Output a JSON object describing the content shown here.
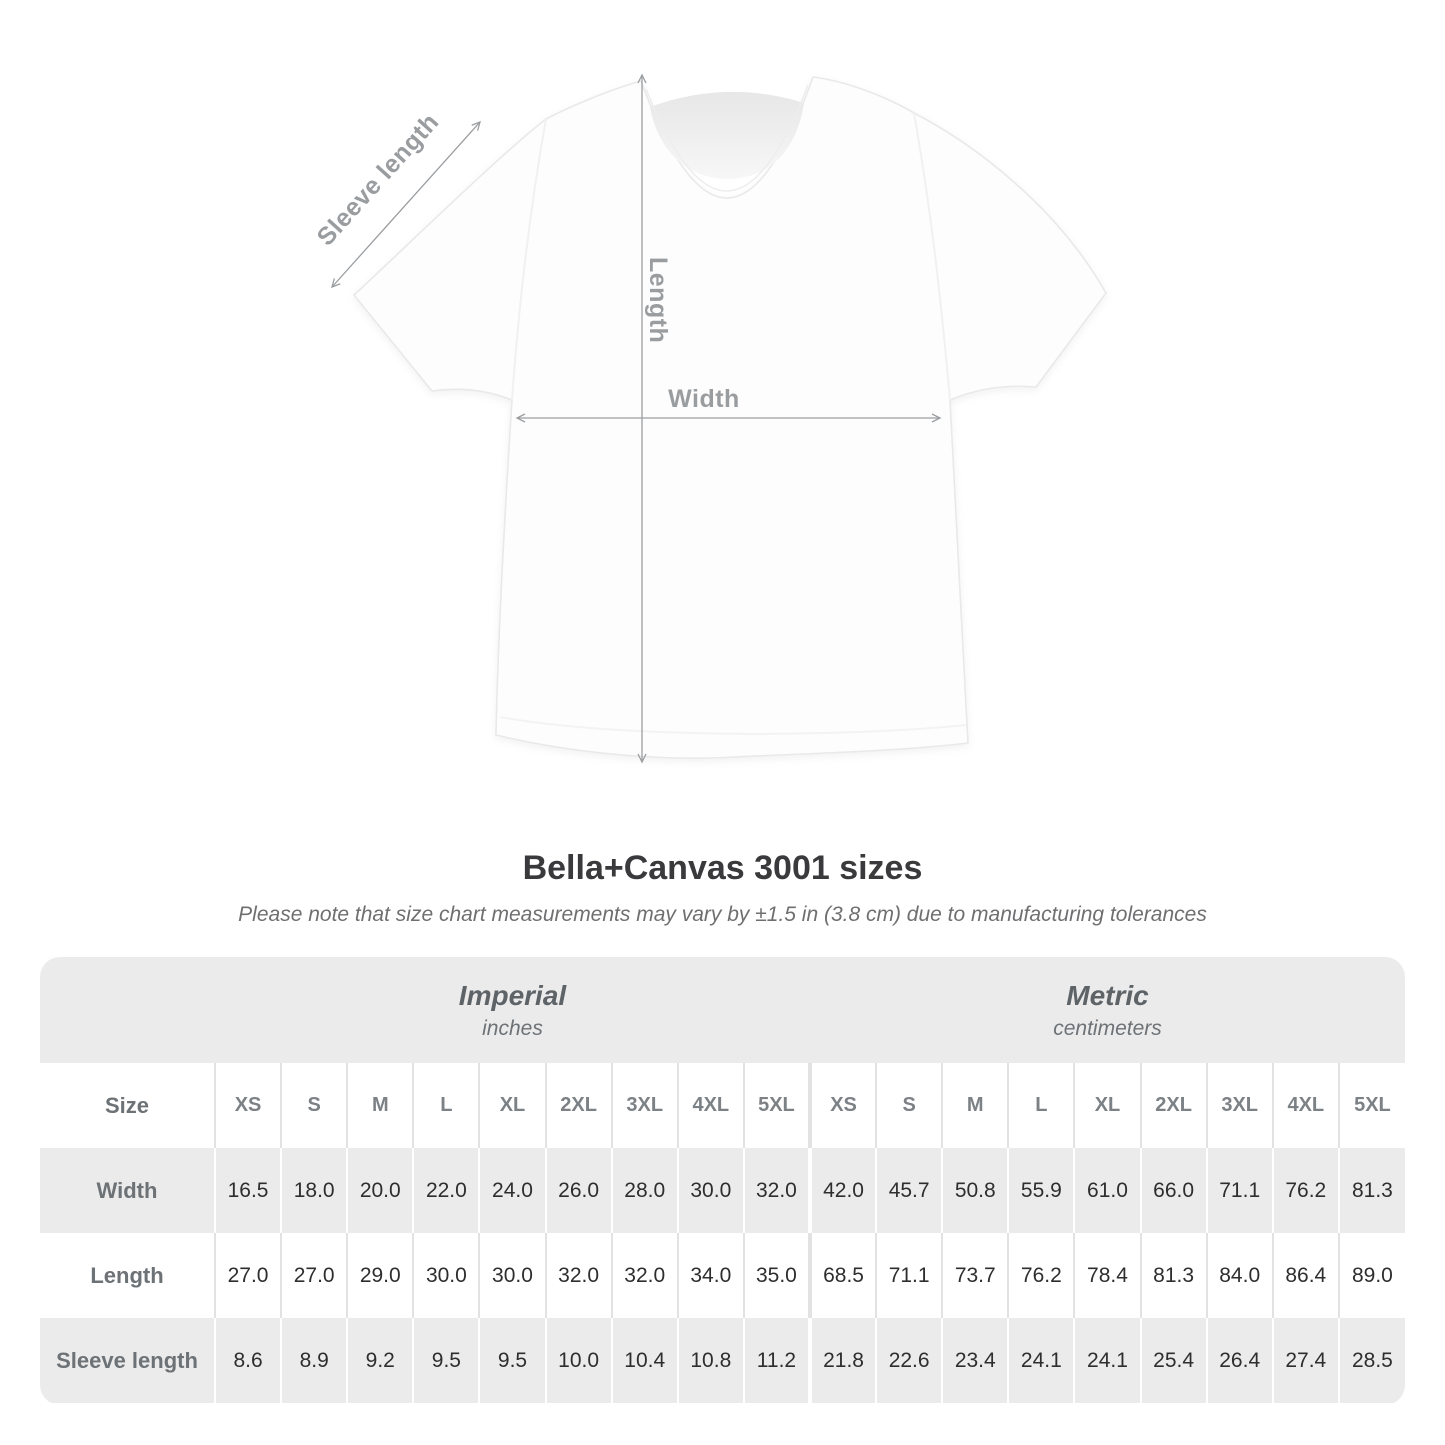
{
  "diagram": {
    "sleeve_label": "Sleeve length",
    "length_label": "Length",
    "width_label": "Width"
  },
  "heading": {
    "title": "Bella+Canvas 3001 sizes",
    "subtitle": "Please note that size chart measurements may vary by ±1.5 in (3.8 cm) due to manufacturing tolerances"
  },
  "table": {
    "size_header": "Size",
    "unit_groups": [
      {
        "label": "Imperial",
        "sublabel": "inches"
      },
      {
        "label": "Metric",
        "sublabel": "centimeters"
      }
    ],
    "sizes": [
      "XS",
      "S",
      "M",
      "L",
      "XL",
      "2XL",
      "3XL",
      "4XL",
      "5XL"
    ],
    "rows": [
      {
        "label": "Width",
        "imperial": [
          "16.5",
          "18.0",
          "20.0",
          "22.0",
          "24.0",
          "26.0",
          "28.0",
          "30.0",
          "32.0"
        ],
        "metric": [
          "42.0",
          "45.7",
          "50.8",
          "55.9",
          "61.0",
          "66.0",
          "71.1",
          "76.2",
          "81.3"
        ]
      },
      {
        "label": "Length",
        "imperial": [
          "27.0",
          "27.0",
          "29.0",
          "30.0",
          "30.0",
          "32.0",
          "32.0",
          "34.0",
          "35.0"
        ],
        "metric": [
          "68.5",
          "71.1",
          "73.7",
          "76.2",
          "78.4",
          "81.3",
          "84.0",
          "86.4",
          "89.0"
        ]
      },
      {
        "label": "Sleeve length",
        "imperial": [
          "8.6",
          "8.9",
          "9.2",
          "9.5",
          "9.5",
          "10.0",
          "10.4",
          "10.8",
          "11.2"
        ],
        "metric": [
          "21.8",
          "22.6",
          "23.4",
          "24.1",
          "24.1",
          "25.4",
          "26.4",
          "27.4",
          "28.5"
        ]
      }
    ]
  },
  "chart_data": {
    "type": "table",
    "title": "Bella+Canvas 3001 sizes",
    "subtitle": "Please note that size chart measurements may vary by ±1.5 in (3.8 cm) due to manufacturing tolerances",
    "unit_groups": [
      "Imperial (inches)",
      "Metric (centimeters)"
    ],
    "sizes": [
      "XS",
      "S",
      "M",
      "L",
      "XL",
      "2XL",
      "3XL",
      "4XL",
      "5XL"
    ],
    "measurements": [
      {
        "name": "Width",
        "imperial_in": [
          16.5,
          18.0,
          20.0,
          22.0,
          24.0,
          26.0,
          28.0,
          30.0,
          32.0
        ],
        "metric_cm": [
          42.0,
          45.7,
          50.8,
          55.9,
          61.0,
          66.0,
          71.1,
          76.2,
          81.3
        ]
      },
      {
        "name": "Length",
        "imperial_in": [
          27.0,
          27.0,
          29.0,
          30.0,
          30.0,
          32.0,
          32.0,
          34.0,
          35.0
        ],
        "metric_cm": [
          68.5,
          71.1,
          73.7,
          76.2,
          78.4,
          81.3,
          84.0,
          86.4,
          89.0
        ]
      },
      {
        "name": "Sleeve length",
        "imperial_in": [
          8.6,
          8.9,
          9.2,
          9.5,
          9.5,
          10.0,
          10.4,
          10.8,
          11.2
        ],
        "metric_cm": [
          21.8,
          22.6,
          23.4,
          24.1,
          24.1,
          25.4,
          26.4,
          27.4,
          28.5
        ]
      }
    ]
  },
  "colors": {
    "table_band_gray": "#ebebeb",
    "row_separator_on_white": "#e2e2e2",
    "value_text": "#2e2e2e",
    "muted_label_text": "#6d7276",
    "diagram_label_gray": "#9a9da0",
    "title_text": "#3a3a3c"
  }
}
